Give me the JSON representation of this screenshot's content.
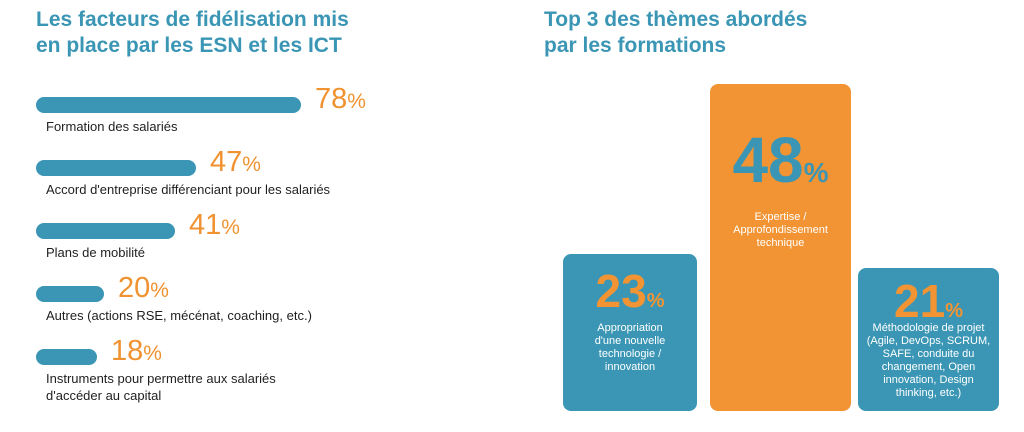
{
  "left_panel": {
    "title": "Les facteurs de fidélisation mis\nen place par les ESN et les ICT"
  },
  "right_panel": {
    "title": "Top 3 des thèmes abordés\npar les formations"
  },
  "colors": {
    "teal": "#3a96b4",
    "orange": "#f29433",
    "heading": "#3a96b4"
  },
  "chart_data": [
    {
      "type": "bar",
      "orientation": "horizontal",
      "title": "Les facteurs de fidélisation mis en place par les ESN et les ICT",
      "unit": "%",
      "categories": [
        "Formation des salariés",
        "Accord d'entreprise différenciant pour les salariés",
        "Plans de mobilité",
        "Autres (actions RSE, mécénat, coaching, etc.)",
        "Instruments pour permettre aux salariés\nd'accéder au capital"
      ],
      "values": [
        78,
        47,
        41,
        20,
        18
      ],
      "value_labels": [
        "78",
        "47",
        "41",
        "20",
        "18"
      ]
    },
    {
      "type": "bar",
      "title": "Top 3 des thèmes abordés par les formations",
      "unit": "%",
      "categories": [
        "Appropriation\nd'une nouvelle\ntechnologie /\ninnovation",
        "Expertise /\nApprofondissement\ntechnique",
        "Méthodologie de projet\n(Agile, DevOps, SCRUM,\nSAFE, conduite du\nchangement, Open\ninnovation, Design\nthinking, etc.)"
      ],
      "values": [
        23,
        48,
        21
      ],
      "value_labels": [
        "23",
        "48",
        "21"
      ],
      "colors": [
        "#3a96b4",
        "#f29433",
        "#3a96b4"
      ]
    }
  ]
}
